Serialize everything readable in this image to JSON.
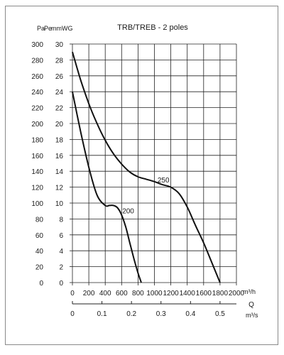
{
  "chart_data": {
    "type": "line",
    "title": "TRB/TREB - 2 poles",
    "y_units": {
      "pa": "Pa",
      "pe": "Pe",
      "mmwg": "mmWG"
    },
    "y_pa_ticks": [
      "0",
      "20",
      "40",
      "60",
      "80",
      "100",
      "120",
      "140",
      "160",
      "180",
      "200",
      "220",
      "240",
      "260",
      "280",
      "300"
    ],
    "y_mmwg_ticks": [
      "0",
      "2",
      "4",
      "6",
      "8",
      "10",
      "12",
      "14",
      "16",
      "18",
      "20",
      "22",
      "24",
      "26",
      "28",
      "30"
    ],
    "x_m3h_ticks": [
      "0",
      "200",
      "400",
      "600",
      "800",
      "1000",
      "1200",
      "1400",
      "1600",
      "1800",
      "2000"
    ],
    "x_m3h_unit": "m³/h",
    "x_m3s_ticks": [
      "0",
      "0.1",
      "0.2",
      "0.3",
      "0.4",
      "0.5"
    ],
    "x_m3s_unit": "m³/s",
    "q_label": "Q",
    "xlim_m3h": [
      0,
      2000
    ],
    "ylim_pa": [
      0,
      300
    ],
    "grid": true,
    "series": [
      {
        "name": "200",
        "x": [
          0,
          100,
          200,
          300,
          400,
          450,
          500,
          550,
          600,
          650,
          700,
          750,
          800,
          840
        ],
        "y": [
          240,
          190,
          145,
          110,
          97,
          97,
          97,
          94,
          85,
          70,
          50,
          30,
          12,
          0
        ]
      },
      {
        "name": "250",
        "x": [
          0,
          100,
          200,
          300,
          400,
          500,
          600,
          700,
          800,
          900,
          1000,
          1100,
          1200,
          1300,
          1400,
          1500,
          1600,
          1700,
          1800
        ],
        "y": [
          290,
          255,
          225,
          200,
          179,
          162,
          149,
          139,
          133,
          130,
          127,
          123,
          120,
          112,
          95,
          72,
          50,
          25,
          0
        ]
      }
    ]
  }
}
